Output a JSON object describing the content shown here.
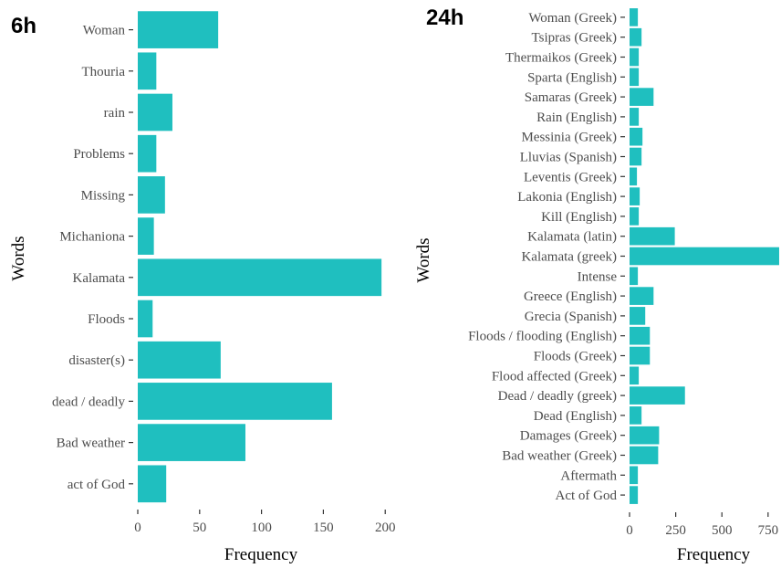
{
  "style": {
    "bar_color": "#1fbfbf",
    "tick_color": "#333333",
    "label_color": "#4d4d4d"
  },
  "chart_data": [
    {
      "panel_tag": "6h",
      "type": "bar",
      "orientation": "horizontal",
      "categories": [
        "Woman",
        "Thouria",
        "rain",
        "Problems",
        "Missing",
        "Michaniona",
        "Kalamata",
        "Floods",
        "disaster(s)",
        "dead / deadly",
        "Bad weather",
        "act of God"
      ],
      "values": [
        65,
        15,
        28,
        15,
        22,
        13,
        197,
        12,
        67,
        157,
        87,
        23
      ],
      "xlabel": "Frequency",
      "ylabel": "Words",
      "xlim": [
        0,
        205
      ],
      "xticks": [
        0,
        50,
        100,
        150,
        200
      ],
      "grid": false
    },
    {
      "panel_tag": "24h",
      "type": "bar",
      "orientation": "horizontal",
      "categories": [
        "Woman (Greek)",
        "Tsipras (Greek)",
        "Thermaikos (Greek)",
        "Sparta (English)",
        "Samaras (Greek)",
        "Rain (English)",
        "Messinia (Greek)",
        "Lluvias (Spanish)",
        "Leventis (Greek)",
        "Lakonia (English)",
        "Kill (English)",
        "Kalamata (latin)",
        "Kalamata (greek)",
        "Intense",
        "Greece (English)",
        "Grecia (Spanish)",
        "Floods / flooding (English)",
        "Floods (Greek)",
        "Flood affected (Greek)",
        "Dead / deadly (greek)",
        "Dead (English)",
        "Damages (Greek)",
        "Bad weather (Greek)",
        "Aftermath",
        "Act of God"
      ],
      "values": [
        45,
        65,
        50,
        50,
        130,
        50,
        70,
        65,
        40,
        55,
        50,
        245,
        810,
        45,
        130,
        85,
        110,
        110,
        50,
        300,
        65,
        160,
        155,
        45,
        45
      ],
      "xlabel": "Frequency",
      "ylabel": "Words",
      "xlim": [
        0,
        820
      ],
      "xticks": [
        0,
        250,
        500,
        750
      ],
      "grid": false
    }
  ]
}
